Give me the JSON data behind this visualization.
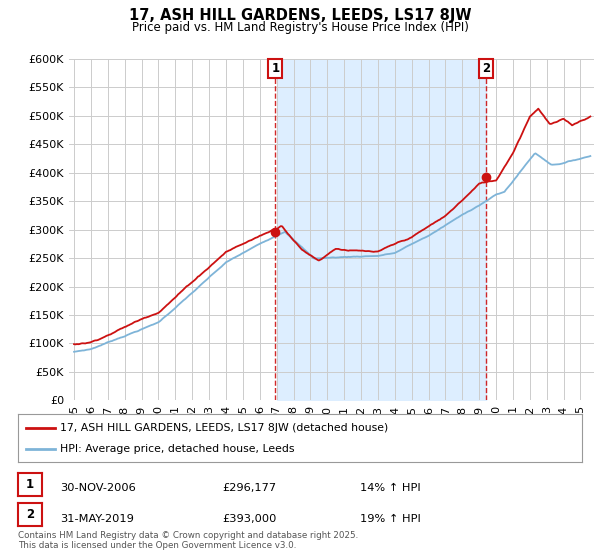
{
  "title": "17, ASH HILL GARDENS, LEEDS, LS17 8JW",
  "subtitle": "Price paid vs. HM Land Registry's House Price Index (HPI)",
  "ylim": [
    0,
    600000
  ],
  "yticks": [
    0,
    50000,
    100000,
    150000,
    200000,
    250000,
    300000,
    350000,
    400000,
    450000,
    500000,
    550000,
    600000
  ],
  "ytick_labels": [
    "£0",
    "£50K",
    "£100K",
    "£150K",
    "£200K",
    "£250K",
    "£300K",
    "£350K",
    "£400K",
    "£450K",
    "£500K",
    "£550K",
    "£600K"
  ],
  "hpi_color": "#7eb4d8",
  "price_color": "#cc1111",
  "fill_color": "#ddeeff",
  "marker1_x": 2006.92,
  "marker1_y": 296177,
  "marker2_x": 2019.42,
  "marker2_y": 393000,
  "legend_line1": "17, ASH HILL GARDENS, LEEDS, LS17 8JW (detached house)",
  "legend_line2": "HPI: Average price, detached house, Leeds",
  "table_row1": [
    "1",
    "30-NOV-2006",
    "£296,177",
    "14% ↑ HPI"
  ],
  "table_row2": [
    "2",
    "31-MAY-2019",
    "£393,000",
    "19% ↑ HPI"
  ],
  "footnote": "Contains HM Land Registry data © Crown copyright and database right 2025.\nThis data is licensed under the Open Government Licence v3.0.",
  "background_color": "#ffffff",
  "grid_color": "#cccccc",
  "xlim_start": 1994.7,
  "xlim_end": 2025.8
}
